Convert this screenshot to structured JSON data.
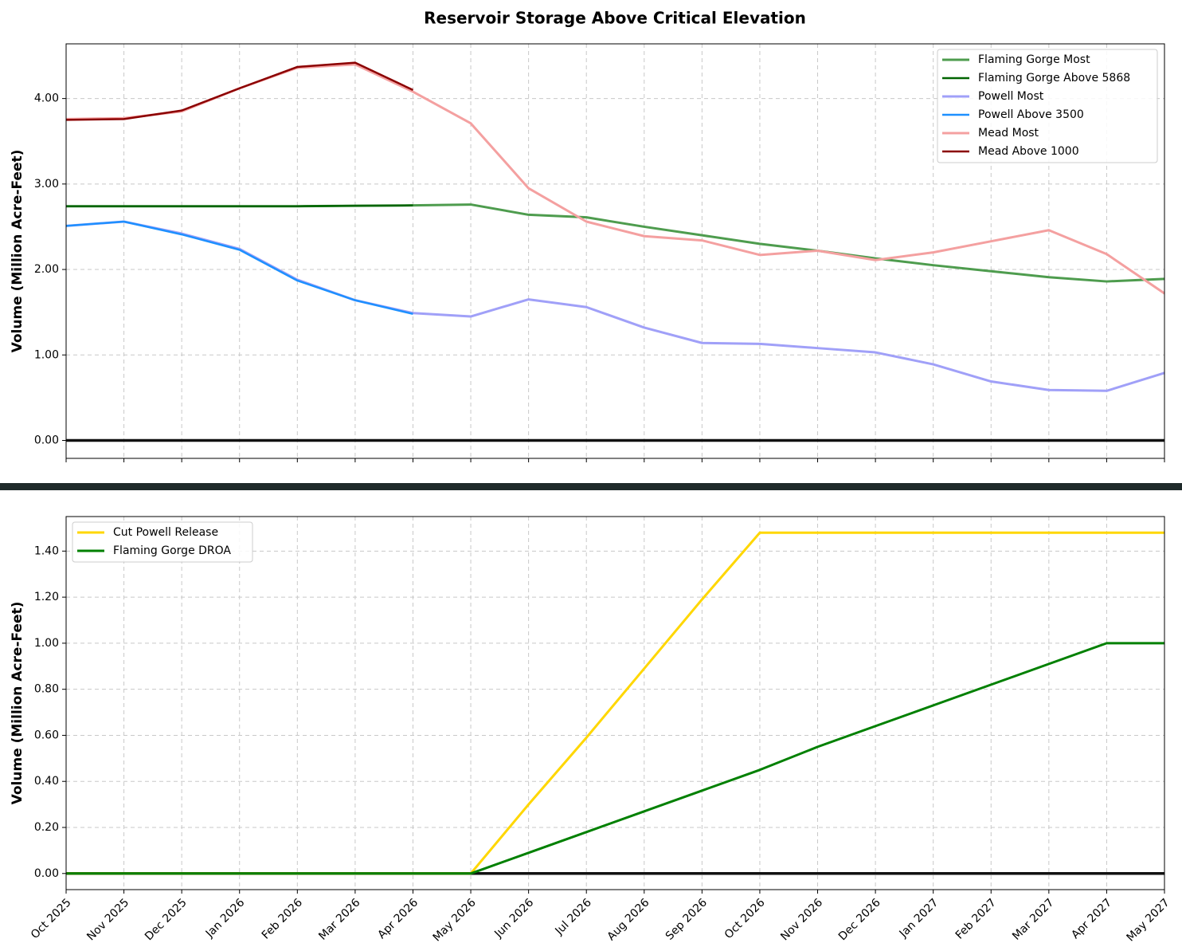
{
  "chart_data": [
    {
      "type": "line",
      "title": "Reservoir Storage Above Critical Elevation",
      "ylabel": "Volume (Million Acre-Feet)",
      "x": [
        "2025-10",
        "2025-11",
        "2025-12",
        "2026-01",
        "2026-02",
        "2026-03",
        "2026-04",
        "2026-05",
        "2026-06",
        "2026-07",
        "2026-08",
        "2026-09",
        "2026-10",
        "2026-11",
        "2026-12",
        "2027-01",
        "2027-02",
        "2027-03",
        "2027-04",
        "2027-05"
      ],
      "xlim": [
        "2025-10",
        "2027-05"
      ],
      "xticks": [
        "2025-10",
        "2025-11",
        "2025-12",
        "2026-01",
        "2026-02",
        "2026-03",
        "2026-04",
        "2026-05",
        "2026-06",
        "2026-07",
        "2026-08",
        "2026-09",
        "2026-10",
        "2026-11",
        "2026-12",
        "2027-01",
        "2027-02",
        "2027-03",
        "2027-04",
        "2027-05"
      ],
      "ylim": [
        -0.21,
        4.64
      ],
      "yticks": [
        {
          "value": 0,
          "label": "0.00"
        },
        {
          "value": 1,
          "label": "1.00"
        },
        {
          "value": 2,
          "label": "2.00"
        },
        {
          "value": 3,
          "label": "3.00"
        },
        {
          "value": 4,
          "label": "4.00"
        }
      ],
      "grid": true,
      "reference_line": 0,
      "legend": "upper right",
      "series": [
        {
          "name": "Flaming Gorge Most",
          "color": "#4e9c4e",
          "width": 3,
          "values": [
            2.74,
            2.74,
            2.74,
            2.74,
            2.74,
            2.745,
            2.75,
            2.76,
            2.64,
            2.61,
            2.5,
            2.4,
            2.3,
            2.22,
            2.13,
            2.05,
            1.98,
            1.91,
            1.86,
            1.89
          ]
        },
        {
          "name": "Flaming Gorge Above 5868",
          "color": "#006400",
          "width": 2.5,
          "values": [
            2.74,
            2.74,
            2.74,
            2.74,
            2.74,
            2.745,
            2.75,
            null,
            null,
            null,
            null,
            null,
            null,
            null,
            null,
            null,
            null,
            null,
            null,
            null
          ]
        },
        {
          "name": "Powell Most",
          "color": "#a0a0f8",
          "width": 3,
          "values": [
            2.51,
            2.56,
            2.42,
            2.24,
            1.88,
            1.64,
            1.49,
            1.45,
            1.65,
            1.56,
            1.32,
            1.14,
            1.13,
            1.08,
            1.03,
            0.89,
            0.69,
            0.59,
            0.58,
            0.79
          ]
        },
        {
          "name": "Powell Above 3500",
          "color": "#1e90ff",
          "width": 2.5,
          "values": [
            2.51,
            2.56,
            2.41,
            2.23,
            1.87,
            1.64,
            1.48,
            null,
            null,
            null,
            null,
            null,
            null,
            null,
            null,
            null,
            null,
            null,
            null,
            null
          ]
        },
        {
          "name": "Mead Most",
          "color": "#f4a0a0",
          "width": 3,
          "values": [
            3.76,
            3.77,
            3.85,
            4.12,
            4.36,
            4.4,
            4.08,
            3.71,
            2.95,
            2.56,
            2.39,
            2.34,
            2.17,
            2.22,
            2.11,
            2.2,
            2.33,
            2.46,
            2.18,
            1.72
          ]
        },
        {
          "name": "Mead Above 1000",
          "color": "#8b0000",
          "width": 2.5,
          "values": [
            3.75,
            3.76,
            3.86,
            4.12,
            4.37,
            4.42,
            4.1,
            null,
            null,
            null,
            null,
            null,
            null,
            null,
            null,
            null,
            null,
            null,
            null,
            null
          ]
        }
      ]
    },
    {
      "type": "line",
      "ylabel": "Volume (Million Acre-Feet)",
      "x": [
        "2025-10",
        "2025-11",
        "2025-12",
        "2026-01",
        "2026-02",
        "2026-03",
        "2026-04",
        "2026-05",
        "2026-06",
        "2026-07",
        "2026-08",
        "2026-09",
        "2026-10",
        "2026-11",
        "2026-12",
        "2027-01",
        "2027-02",
        "2027-03",
        "2027-04",
        "2027-05"
      ],
      "xlim": [
        "2025-10",
        "2027-05"
      ],
      "xticks": [
        {
          "value": "2025-10",
          "label": "Oct 2025"
        },
        {
          "value": "2025-11",
          "label": "Nov 2025"
        },
        {
          "value": "2025-12",
          "label": "Dec 2025"
        },
        {
          "value": "2026-01",
          "label": "Jan 2026"
        },
        {
          "value": "2026-02",
          "label": "Feb 2026"
        },
        {
          "value": "2026-03",
          "label": "Mar 2026"
        },
        {
          "value": "2026-04",
          "label": "Apr 2026"
        },
        {
          "value": "2026-05",
          "label": "May 2026"
        },
        {
          "value": "2026-06",
          "label": "Jun 2026"
        },
        {
          "value": "2026-07",
          "label": "Jul 2026"
        },
        {
          "value": "2026-08",
          "label": "Aug 2026"
        },
        {
          "value": "2026-09",
          "label": "Sep 2026"
        },
        {
          "value": "2026-10",
          "label": "Oct 2026"
        },
        {
          "value": "2026-11",
          "label": "Nov 2026"
        },
        {
          "value": "2026-12",
          "label": "Dec 2026"
        },
        {
          "value": "2027-01",
          "label": "Jan 2027"
        },
        {
          "value": "2027-02",
          "label": "Feb 2027"
        },
        {
          "value": "2027-03",
          "label": "Mar 2027"
        },
        {
          "value": "2027-04",
          "label": "Apr 2027"
        },
        {
          "value": "2027-05",
          "label": "May 2027"
        }
      ],
      "ylim": [
        -0.07,
        1.55
      ],
      "yticks": [
        {
          "value": 0,
          "label": "0.00"
        },
        {
          "value": 0.2,
          "label": "0.20"
        },
        {
          "value": 0.4,
          "label": "0.40"
        },
        {
          "value": 0.6,
          "label": "0.60"
        },
        {
          "value": 0.8,
          "label": "0.80"
        },
        {
          "value": 1,
          "label": "1.00"
        },
        {
          "value": 1.2,
          "label": "1.20"
        },
        {
          "value": 1.4,
          "label": "1.40"
        }
      ],
      "grid": true,
      "reference_line": 0,
      "legend": "upper left",
      "series": [
        {
          "name": "Cut Powell Release",
          "color": "#ffd700",
          "width": 3,
          "values": [
            0,
            0,
            0,
            0,
            0,
            0,
            0,
            0,
            0.3,
            0.59,
            0.89,
            1.19,
            1.48,
            1.48,
            1.48,
            1.48,
            1.48,
            1.48,
            1.48,
            1.48
          ]
        },
        {
          "name": "Flaming Gorge DROA",
          "color": "#008000",
          "width": 3,
          "values": [
            0,
            0,
            0,
            0,
            0,
            0,
            0,
            0,
            0.09,
            0.18,
            0.27,
            0.36,
            0.45,
            0.55,
            0.64,
            0.73,
            0.82,
            0.91,
            1,
            1
          ]
        }
      ]
    }
  ]
}
